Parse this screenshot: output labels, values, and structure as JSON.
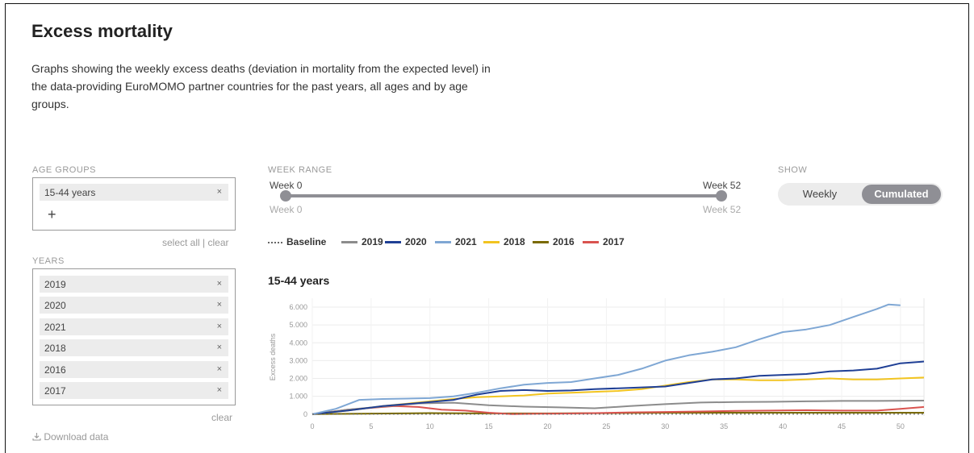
{
  "page": {
    "title": "Excess mortality",
    "description": "Graphs showing the weekly excess deaths (deviation in mortality from the expected level) in the data-providing EuroMOMO partner countries for the past years, all ages and by age groups."
  },
  "age_groups": {
    "label": "AGE GROUPS",
    "selected": [
      {
        "label": "15-44 years",
        "remove": "×"
      }
    ],
    "add_icon": "+",
    "select_all": "select all",
    "separator": "|",
    "clear": "clear"
  },
  "years": {
    "label": "YEARS",
    "selected": [
      {
        "label": "2019",
        "remove": "×"
      },
      {
        "label": "2020",
        "remove": "×"
      },
      {
        "label": "2021",
        "remove": "×"
      },
      {
        "label": "2018",
        "remove": "×"
      },
      {
        "label": "2016",
        "remove": "×"
      },
      {
        "label": "2017",
        "remove": "×"
      }
    ],
    "clear": "clear"
  },
  "download": {
    "icon": "download-icon",
    "label": "Download data"
  },
  "week_range": {
    "label": "WEEK RANGE",
    "start_value": "Week 0",
    "end_value": "Week 52",
    "min_label": "Week 0",
    "max_label": "Week 52",
    "start_week": 0,
    "end_week": 52
  },
  "show": {
    "label": "SHOW",
    "options": [
      "Weekly",
      "Cumulated"
    ],
    "selected": "Cumulated"
  },
  "colors": {
    "baseline": "#666666",
    "2019": "#8c8c8c",
    "2020": "#1f3f95",
    "2021": "#7fa7d4",
    "2018": "#f2c420",
    "2016": "#7a6a00",
    "2017": "#d9534f"
  },
  "chart_data": {
    "type": "line",
    "title": "15-44 years",
    "xlabel": "",
    "ylabel": "Excess deaths",
    "xlim": [
      0,
      52
    ],
    "ylim": [
      -100,
      6500
    ],
    "x_ticks": [
      0,
      5,
      10,
      15,
      20,
      25,
      30,
      35,
      40,
      45,
      50
    ],
    "y_ticks": [
      0,
      1000,
      2000,
      3000,
      4000,
      5000,
      6000
    ],
    "y_tick_labels": [
      "0",
      "1.000",
      "2.000",
      "3.000",
      "4.000",
      "5.000",
      "6.000"
    ],
    "grid": true,
    "legend": [
      {
        "name": "Baseline",
        "style": "dotted"
      },
      {
        "name": "2019"
      },
      {
        "name": "2020"
      },
      {
        "name": "2021"
      },
      {
        "name": "2018"
      },
      {
        "name": "2016"
      },
      {
        "name": "2017"
      }
    ],
    "series": [
      {
        "name": "Baseline",
        "x": [
          0,
          52
        ],
        "values": [
          0,
          0
        ]
      },
      {
        "name": "2019",
        "x": [
          0,
          3,
          6,
          9,
          12,
          15,
          18,
          21,
          24,
          27,
          30,
          33,
          36,
          39,
          42,
          45,
          48,
          52
        ],
        "values": [
          0,
          250,
          430,
          600,
          640,
          500,
          420,
          380,
          330,
          450,
          560,
          650,
          680,
          690,
          720,
          740,
          740,
          760
        ]
      },
      {
        "name": "2020",
        "x": [
          0,
          3,
          6,
          9,
          12,
          14,
          16,
          18,
          20,
          22,
          24,
          26,
          28,
          30,
          32,
          34,
          36,
          38,
          40,
          42,
          44,
          46,
          48,
          50,
          52
        ],
        "values": [
          0,
          200,
          450,
          620,
          800,
          1100,
          1300,
          1350,
          1300,
          1330,
          1400,
          1450,
          1500,
          1550,
          1750,
          1950,
          2000,
          2150,
          2200,
          2250,
          2400,
          2450,
          2550,
          2850,
          2950
        ]
      },
      {
        "name": "2021",
        "x": [
          0,
          2,
          4,
          6,
          8,
          10,
          12,
          14,
          16,
          18,
          20,
          22,
          24,
          26,
          28,
          30,
          32,
          34,
          36,
          38,
          40,
          42,
          44,
          46,
          48,
          49,
          50
        ],
        "values": [
          0,
          300,
          800,
          850,
          870,
          900,
          1000,
          1200,
          1450,
          1650,
          1750,
          1800,
          2000,
          2200,
          2550,
          3000,
          3300,
          3500,
          3750,
          4200,
          4600,
          4750,
          5000,
          5450,
          5900,
          6150,
          6100
        ]
      },
      {
        "name": "2018",
        "x": [
          0,
          3,
          6,
          9,
          12,
          14,
          16,
          18,
          20,
          22,
          24,
          26,
          28,
          30,
          32,
          34,
          36,
          38,
          40,
          42,
          44,
          46,
          48,
          50,
          52
        ],
        "values": [
          0,
          200,
          450,
          650,
          850,
          950,
          1000,
          1050,
          1150,
          1200,
          1250,
          1300,
          1400,
          1600,
          1800,
          1950,
          1950,
          1900,
          1900,
          1950,
          2000,
          1950,
          1950,
          2000,
          2050
        ]
      },
      {
        "name": "2016",
        "x": [
          0,
          5,
          10,
          15,
          20,
          25,
          30,
          35,
          40,
          45,
          50,
          52
        ],
        "values": [
          0,
          30,
          60,
          40,
          40,
          60,
          80,
          80,
          80,
          80,
          80,
          80
        ]
      },
      {
        "name": "2017",
        "x": [
          0,
          3,
          5,
          7,
          9,
          11,
          13,
          15,
          17,
          19,
          21,
          24,
          27,
          30,
          33,
          36,
          39,
          42,
          45,
          48,
          50,
          52
        ],
        "values": [
          0,
          250,
          350,
          450,
          400,
          250,
          200,
          80,
          0,
          20,
          30,
          60,
          100,
          120,
          150,
          180,
          200,
          220,
          200,
          200,
          300,
          400
        ]
      }
    ]
  }
}
